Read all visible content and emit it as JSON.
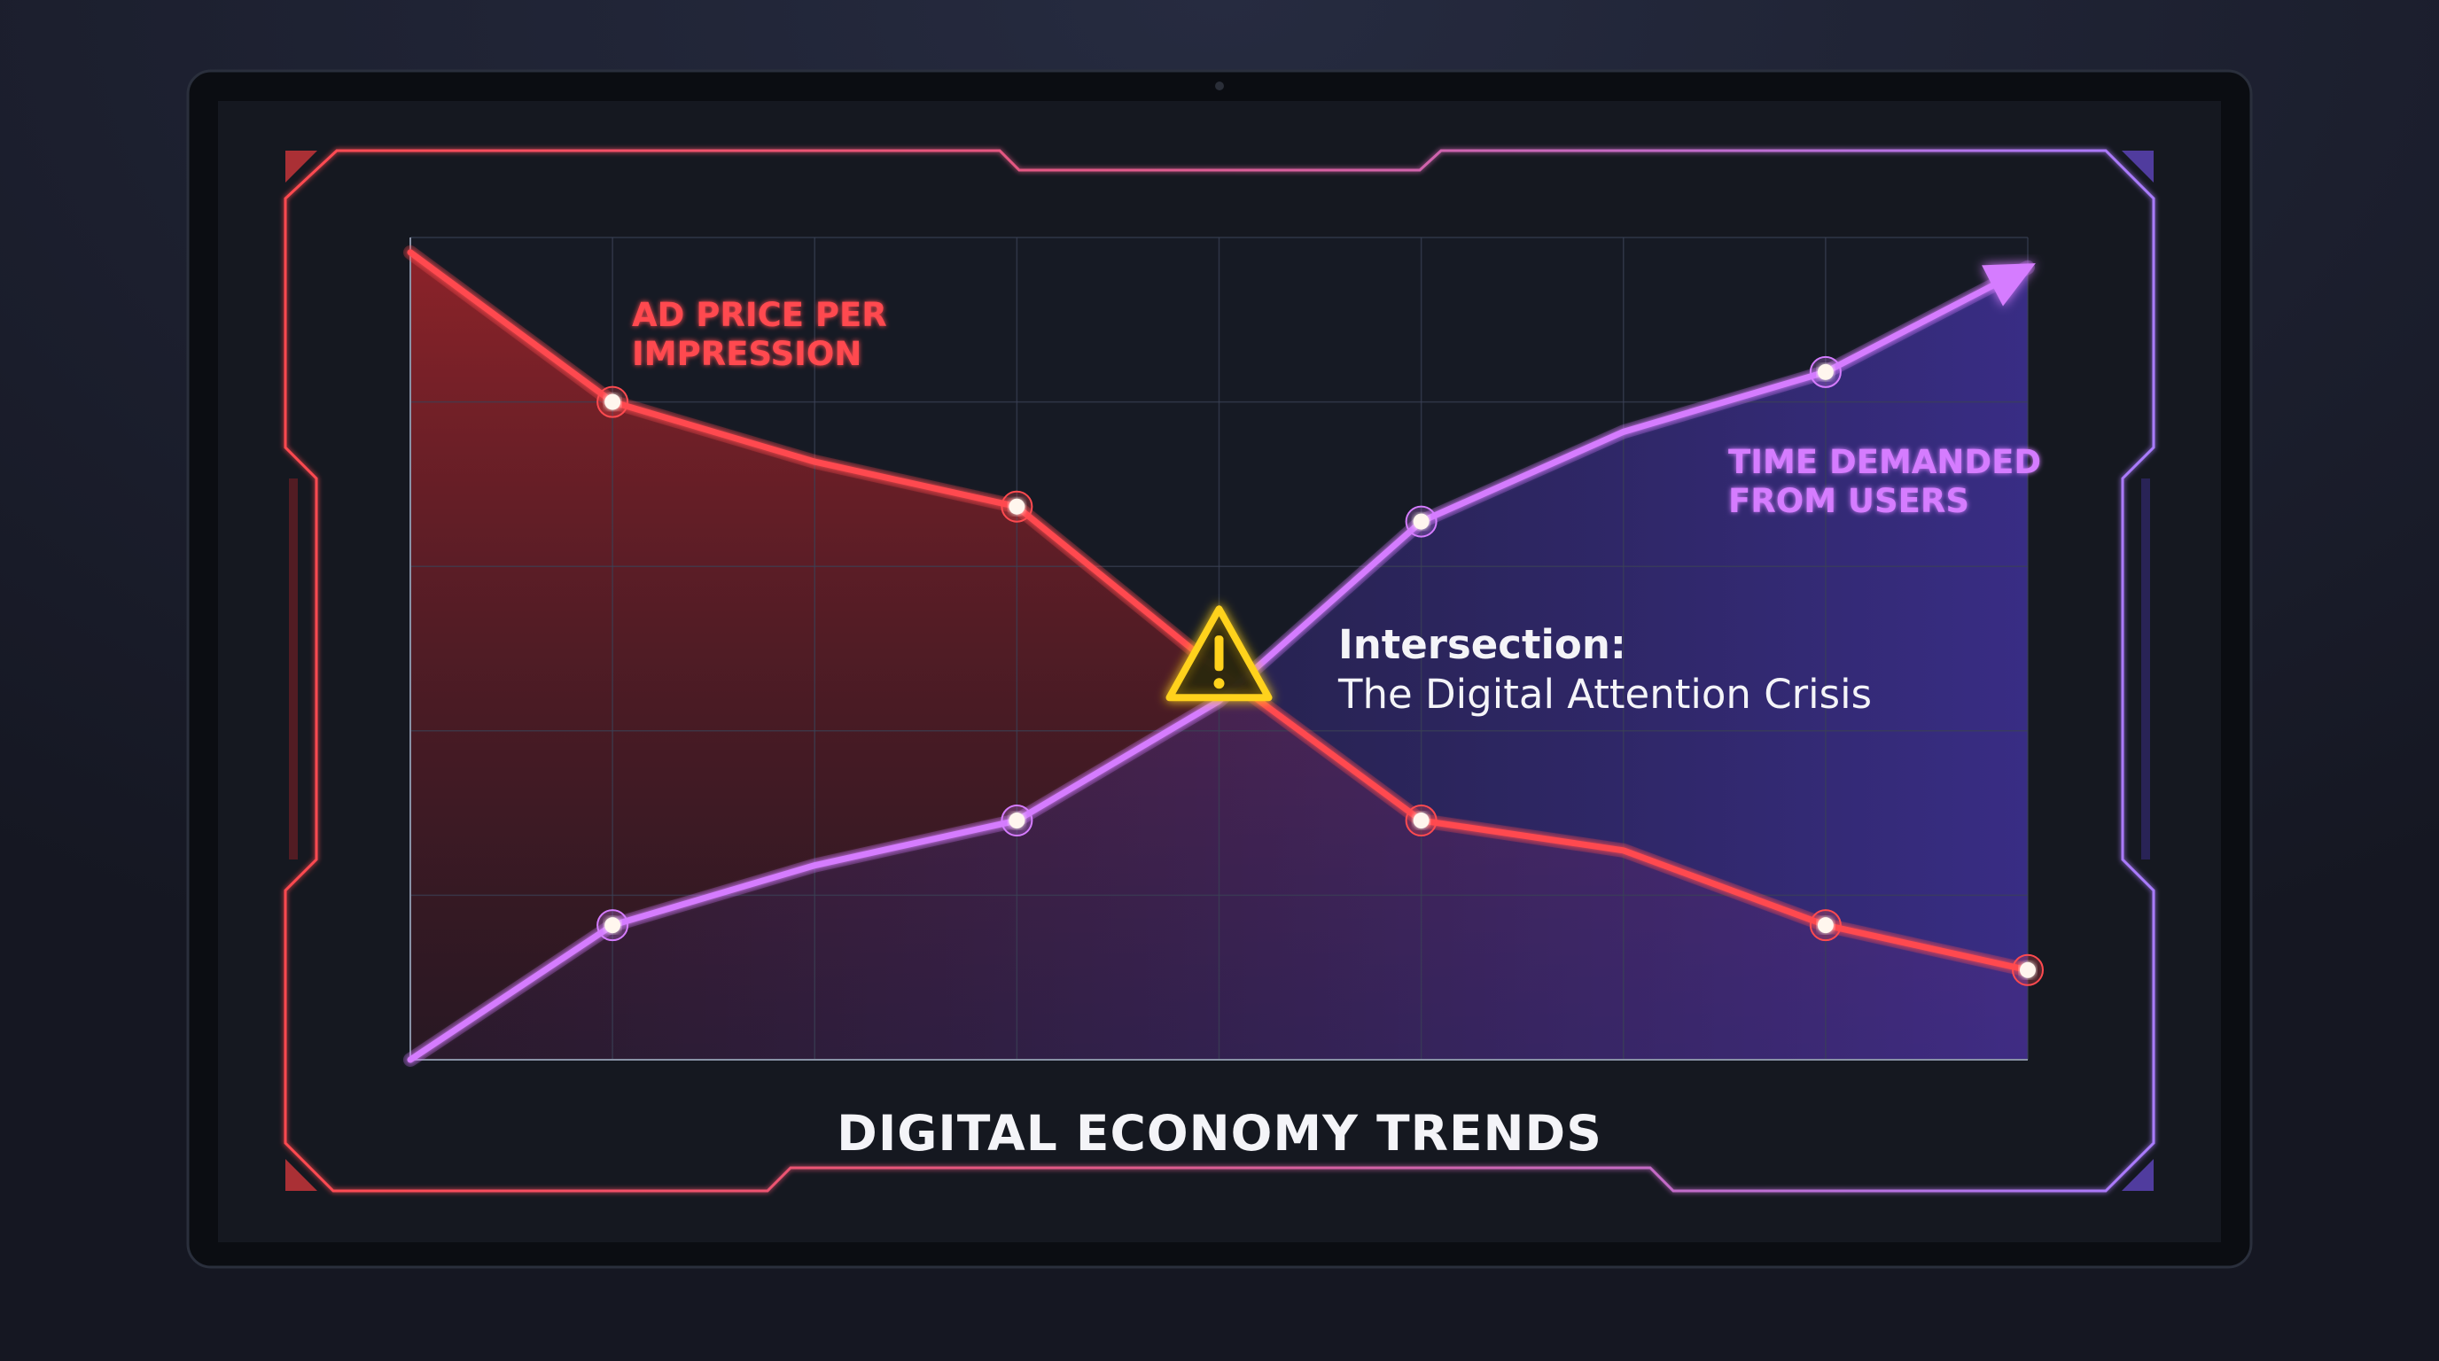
{
  "colors": {
    "background": "#171a26",
    "bezel": "#0c0e14",
    "screen": "#151820",
    "ad_price": "#ff4a4f",
    "time_demanded": "#d57cff",
    "warning": "#ffd21c",
    "text": "#f4f4f8"
  },
  "icons": [
    "warning-triangle-icon",
    "arrowhead-icon"
  ],
  "chart_data": {
    "type": "line",
    "title": "DIGITAL ECONOMY TRENDS",
    "xlabel": "",
    "ylabel": "",
    "x": [
      0,
      1,
      2,
      3,
      4,
      5,
      6,
      7,
      8
    ],
    "xlim": [
      0,
      8
    ],
    "ylim": [
      0,
      5.5
    ],
    "grid": true,
    "tick_labels": false,
    "series": [
      {
        "name": "AD PRICE PER IMPRESSION",
        "label_lines": [
          "AD PRICE PER",
          "IMPRESSION"
        ],
        "color": "#ff4a4f",
        "area": true,
        "values": [
          5.4,
          4.4,
          4.0,
          3.7,
          2.6,
          1.6,
          1.4,
          0.9,
          0.6
        ],
        "markers": [
          1,
          3,
          5,
          7,
          8
        ]
      },
      {
        "name": "TIME DEMANDED FROM USERS",
        "label_lines": [
          "TIME DEMANDED",
          "FROM USERS"
        ],
        "color": "#d57cff",
        "area": true,
        "arrow": true,
        "values": [
          0.0,
          0.9,
          1.3,
          1.6,
          2.4,
          3.6,
          4.2,
          4.6,
          5.3
        ],
        "markers": [
          1,
          3,
          5,
          7
        ]
      }
    ],
    "annotations": [
      {
        "text_bold": "Intersection:",
        "text": "The Digital Attention Crisis",
        "icon": "warning-triangle-icon",
        "x": 4,
        "y": 2.6
      }
    ]
  }
}
